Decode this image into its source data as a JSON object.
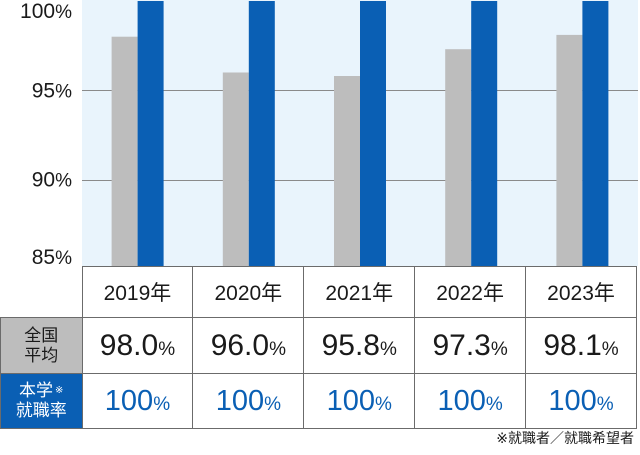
{
  "chart_data": {
    "type": "bar",
    "categories": [
      "2019年",
      "2020年",
      "2021年",
      "2022年",
      "2023年"
    ],
    "series": [
      {
        "name": "全国平均",
        "values": [
          98.0,
          96.0,
          95.8,
          97.3,
          98.1
        ],
        "color": "#bdbdbd"
      },
      {
        "name": "本学就職率※",
        "values": [
          100,
          100,
          100,
          100,
          100
        ],
        "color": "#0a5fb4"
      }
    ],
    "yticks": [
      85,
      90,
      95,
      100
    ],
    "ytick_labels": [
      "85%",
      "90%",
      "95%",
      "100%"
    ],
    "ylim": [
      85,
      100
    ],
    "grid": true,
    "plot_background": "#e9f4fc",
    "gridline_color": "#8a8a8a"
  },
  "table": {
    "years": [
      "2019年",
      "2020年",
      "2021年",
      "2022年",
      "2023年"
    ],
    "avg_label_line1": "全国",
    "avg_label_line2": "平均",
    "rate_label_line1": "本学",
    "rate_label_mark": "※",
    "rate_label_line2": "就職率",
    "avg_values": [
      "98.0",
      "96.0",
      "95.8",
      "97.3",
      "98.1"
    ],
    "rate_values": [
      "100",
      "100",
      "100",
      "100",
      "100"
    ],
    "unit": "%"
  },
  "footnote": "※就職者／就職希望者"
}
